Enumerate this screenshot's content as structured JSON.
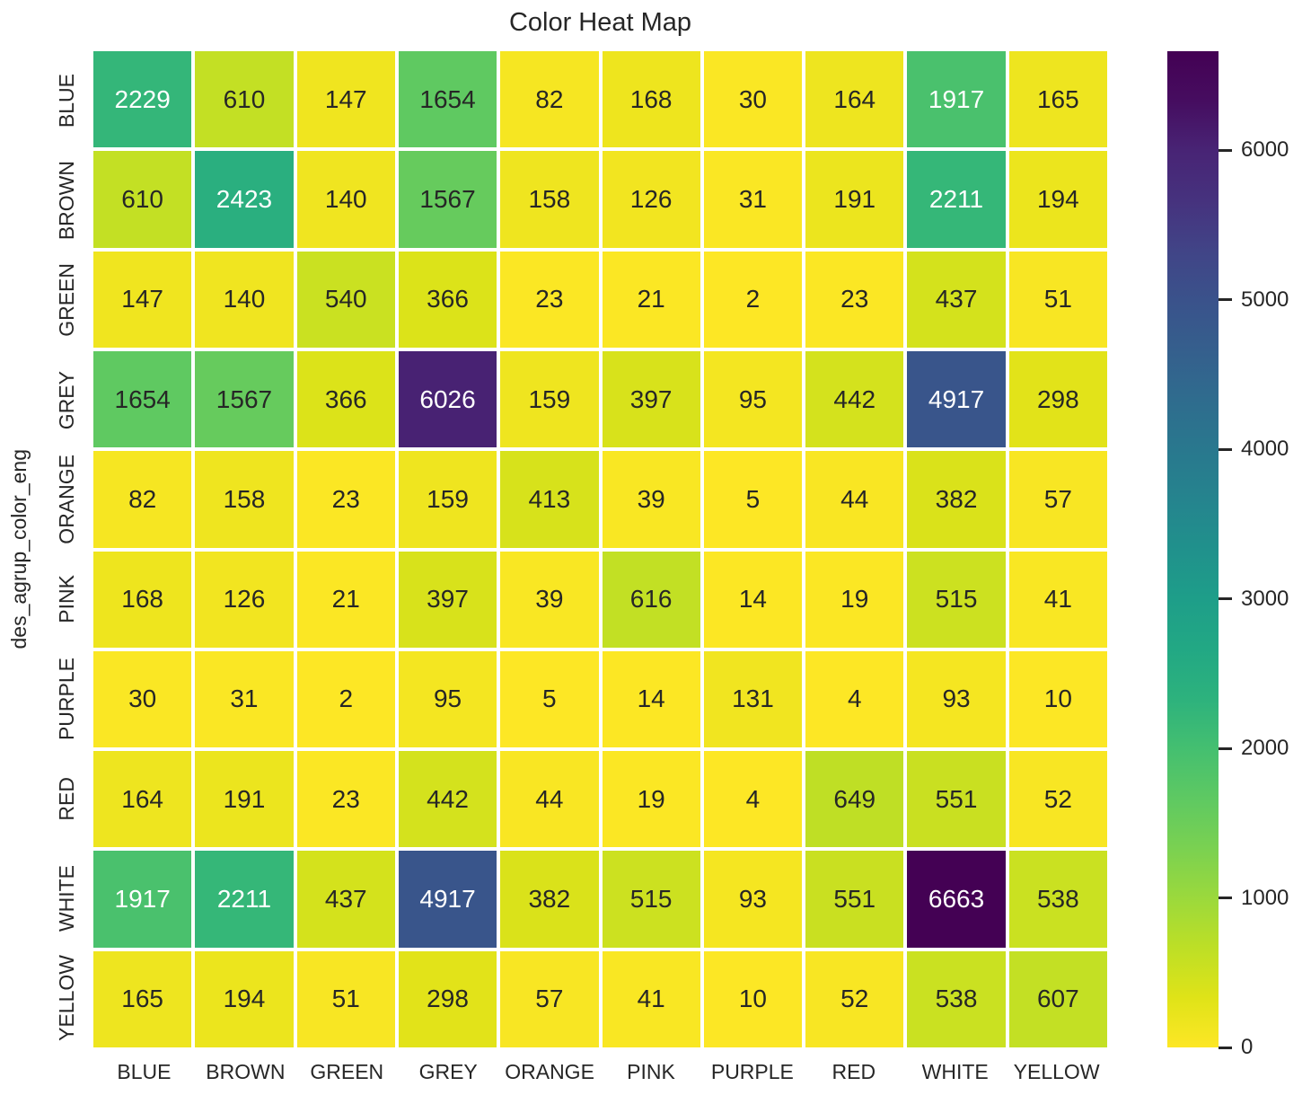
{
  "figure": {
    "background_color": "#ffffff",
    "text_color": "#262626"
  },
  "chart_data": {
    "type": "heatmap",
    "title": "Color Heat Map",
    "xlabel": "",
    "ylabel": "des_agrup_color_eng",
    "x_tick_labels": [
      "BLUE",
      "BROWN",
      "GREEN",
      "GREY",
      "ORANGE",
      "PINK",
      "PURPLE",
      "RED",
      "WHITE",
      "YELLOW"
    ],
    "y_tick_labels": [
      "BLUE",
      "BROWN",
      "GREEN",
      "GREY",
      "ORANGE",
      "PINK",
      "PURPLE",
      "RED",
      "WHITE",
      "YELLOW"
    ],
    "matrix": [
      [
        2229,
        610,
        147,
        1654,
        82,
        168,
        30,
        164,
        1917,
        165
      ],
      [
        610,
        2423,
        140,
        1567,
        158,
        126,
        31,
        191,
        2211,
        194
      ],
      [
        147,
        140,
        540,
        366,
        23,
        21,
        2,
        23,
        437,
        51
      ],
      [
        1654,
        1567,
        366,
        6026,
        159,
        397,
        95,
        442,
        4917,
        298
      ],
      [
        82,
        158,
        23,
        159,
        413,
        39,
        5,
        44,
        382,
        57
      ],
      [
        168,
        126,
        21,
        397,
        39,
        616,
        14,
        19,
        515,
        41
      ],
      [
        30,
        31,
        2,
        95,
        5,
        14,
        131,
        4,
        93,
        10
      ],
      [
        164,
        191,
        23,
        442,
        44,
        19,
        4,
        649,
        551,
        52
      ],
      [
        1917,
        2211,
        437,
        4917,
        382,
        515,
        93,
        551,
        6663,
        538
      ],
      [
        165,
        194,
        51,
        298,
        57,
        41,
        10,
        52,
        538,
        607
      ]
    ],
    "vmin": 0,
    "vmax": 6663,
    "colormap": "viridis_r",
    "colormap_anchor_colors_t0_to_t1": [
      "#440154",
      "#460d60",
      "#482475",
      "#46327e",
      "#414487",
      "#3a528b",
      "#355f8d",
      "#2f6c8e",
      "#29788e",
      "#25848e",
      "#20918c",
      "#1e9e89",
      "#22a884",
      "#2db27d",
      "#44bf70",
      "#5ec962",
      "#7ad151",
      "#9bd93c",
      "#bddf26",
      "#dfe318",
      "#fde725"
    ],
    "grid_line_color": "#ffffff",
    "annotation_color_on_dark": "#ffffff",
    "annotation_color_on_light": "#262626",
    "legend_position": "right",
    "colorbar": {
      "ticks": [
        0,
        1000,
        2000,
        3000,
        4000,
        5000,
        6000
      ]
    }
  }
}
